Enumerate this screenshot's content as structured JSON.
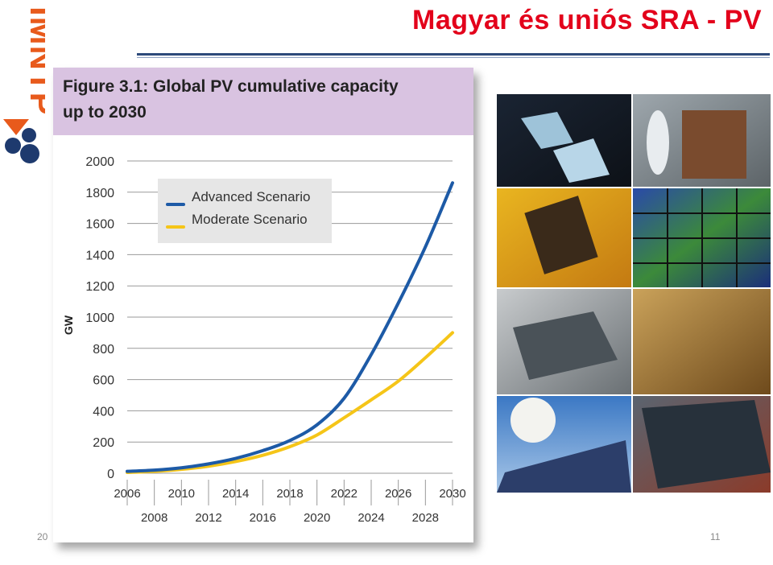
{
  "slide": {
    "title": "Magyar és uniós SRA - PV",
    "logo_text": "IMNTP",
    "page_date": "20",
    "page_number": "11"
  },
  "figure": {
    "title_line1": "Figure 3.1: Global PV cumulative capacity",
    "title_line2": "up to 2030"
  },
  "chart_data": {
    "type": "line",
    "title": "Figure 3.1: Global PV cumulative capacity up to 2030",
    "ylabel": "GW",
    "xlabel": "",
    "ylim": [
      0,
      2000
    ],
    "xlim": [
      2006,
      2030
    ],
    "y_ticks": [
      "0",
      "200",
      "400",
      "600",
      "800",
      "1000",
      "1200",
      "1400",
      "1600",
      "1800",
      "2000"
    ],
    "x_ticks_top": [
      "2006",
      "2010",
      "2014",
      "2018",
      "2022",
      "2026",
      "2030"
    ],
    "x_ticks_bottom": [
      "2008",
      "2012",
      "2016",
      "2020",
      "2024",
      "2028"
    ],
    "grid": true,
    "legend_position": "top-left",
    "x": [
      2006,
      2008,
      2010,
      2012,
      2014,
      2016,
      2018,
      2020,
      2022,
      2024,
      2026,
      2028,
      2030
    ],
    "series": [
      {
        "name": "Advanced Scenario",
        "color": "#1d5aa6",
        "values": [
          12,
          20,
          35,
          60,
          95,
          145,
          210,
          310,
          480,
          760,
          1090,
          1450,
          1860
        ]
      },
      {
        "name": "Moderate Scenario",
        "color": "#f5c518",
        "values": [
          5,
          12,
          25,
          45,
          75,
          115,
          170,
          245,
          355,
          470,
          590,
          740,
          900
        ]
      }
    ]
  },
  "colors": {
    "title_red": "#e3001b",
    "header_purple": "#d9c3e1",
    "rule_blue": "#2d4a7a"
  }
}
